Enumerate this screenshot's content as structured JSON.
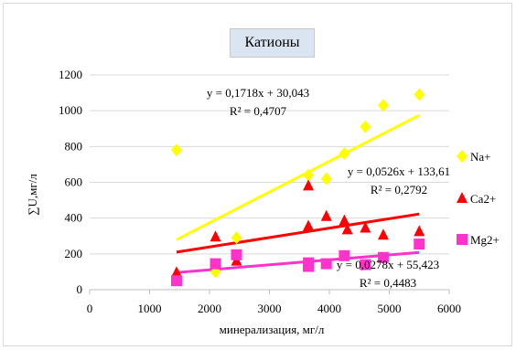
{
  "chart_data": {
    "type": "scatter",
    "title": "Катионы",
    "xlabel": "минерализация, мг/л",
    "ylabel": "∑U,мг/л",
    "xlim": [
      0,
      6000
    ],
    "ylim": [
      0,
      1200
    ],
    "xticks": [
      "0",
      "1000",
      "2000",
      "3000",
      "4000",
      "5000",
      "6000"
    ],
    "yticks": [
      "0",
      "200",
      "400",
      "600",
      "800",
      "1000",
      "1200"
    ],
    "grid": "horizontal",
    "legend_position": "right",
    "series": [
      {
        "name": "Na+",
        "marker": "diamond",
        "color": "#ffff00",
        "trendline": {
          "slope": 0.1718,
          "intercept": 30.043
        },
        "equation": "y = 0,1718x + 30,043",
        "r2": "R² = 0,4707",
        "points": [
          [
            1450,
            780
          ],
          [
            2100,
            100
          ],
          [
            2450,
            290
          ],
          [
            3650,
            640
          ],
          [
            3950,
            620
          ],
          [
            4250,
            760
          ],
          [
            4600,
            910
          ],
          [
            4900,
            1030
          ],
          [
            5500,
            1090
          ]
        ]
      },
      {
        "name": "Ca2+",
        "marker": "triangle",
        "color": "#ff0000",
        "trendline": {
          "slope": 0.0526,
          "intercept": 133.61
        },
        "equation": "y = 0,0526x + 133,61",
        "r2": "R² = 0,2792",
        "points": [
          [
            1450,
            95
          ],
          [
            2100,
            295
          ],
          [
            2450,
            160
          ],
          [
            3650,
            580
          ],
          [
            3650,
            355
          ],
          [
            3950,
            410
          ],
          [
            4250,
            385
          ],
          [
            4300,
            335
          ],
          [
            4600,
            345
          ],
          [
            4900,
            305
          ],
          [
            5500,
            325
          ]
        ]
      },
      {
        "name": "Mg2+",
        "marker": "square",
        "color": "#ff33cc",
        "trendline": {
          "slope": 0.0278,
          "intercept": 55.423
        },
        "equation": "y = 0,0278x + 55,423",
        "r2": "R² = 0,4483",
        "points": [
          [
            1450,
            50
          ],
          [
            2100,
            145
          ],
          [
            2450,
            195
          ],
          [
            3650,
            130
          ],
          [
            3650,
            150
          ],
          [
            3950,
            145
          ],
          [
            4250,
            190
          ],
          [
            4600,
            140
          ],
          [
            4900,
            180
          ],
          [
            5500,
            255
          ]
        ]
      }
    ]
  }
}
